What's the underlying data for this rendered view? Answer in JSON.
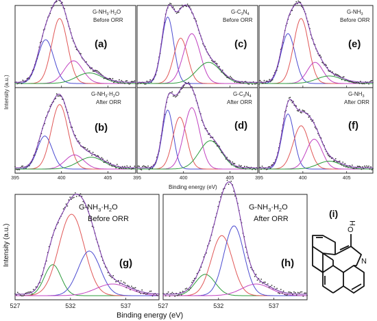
{
  "figure": {
    "top_xlabel": "Binding energy (eV)",
    "top_ylabel": "Intensity (a.u.)",
    "bottom_xlabel": "Binding energy (eV)",
    "bottom_ylabel": "Intensity (a.u.)",
    "structure_label": "(i)",
    "structure_atoms": [
      "O",
      "H",
      "N"
    ]
  },
  "chart_data": [
    {
      "type": "line",
      "panel": "(a)",
      "sample": "G-NH3·H2O",
      "state": "Before ORR",
      "xlim": [
        395,
        408
      ],
      "xticks": [
        395,
        400,
        405
      ],
      "series": [
        {
          "center": 398.3,
          "width": 0.85,
          "height": 0.58,
          "color": "#4a4ad0"
        },
        {
          "center": 399.8,
          "width": 0.85,
          "height": 0.86,
          "color": "#e05555"
        },
        {
          "center": 401.3,
          "width": 1.0,
          "height": 0.3,
          "color": "#c040c0"
        },
        {
          "center": 403.0,
          "width": 1.4,
          "height": 0.14,
          "color": "#2a9a3a"
        }
      ]
    },
    {
      "type": "line",
      "panel": "(b)",
      "sample": "G-NH3·H2O",
      "state": "After ORR",
      "xlim": [
        395,
        408
      ],
      "xticks": [
        395,
        400,
        405
      ],
      "series": [
        {
          "center": 398.2,
          "width": 0.8,
          "height": 0.42,
          "color": "#4a4ad0"
        },
        {
          "center": 399.8,
          "width": 0.9,
          "height": 0.82,
          "color": "#e05555"
        },
        {
          "center": 401.4,
          "width": 1.0,
          "height": 0.18,
          "color": "#c040c0"
        },
        {
          "center": 403.2,
          "width": 1.4,
          "height": 0.15,
          "color": "#2a9a3a"
        }
      ]
    },
    {
      "type": "line",
      "panel": "(c)",
      "sample": "G-C3N4",
      "state": "Before ORR",
      "xlim": [
        395,
        408
      ],
      "xticks": [
        395,
        400,
        405
      ],
      "series": [
        {
          "center": 398.3,
          "width": 0.65,
          "height": 0.88,
          "color": "#4a4ad0"
        },
        {
          "center": 399.7,
          "width": 0.75,
          "height": 0.6,
          "color": "#e05555"
        },
        {
          "center": 400.9,
          "width": 0.9,
          "height": 0.66,
          "color": "#c040c0"
        },
        {
          "center": 402.7,
          "width": 1.3,
          "height": 0.28,
          "color": "#2a9a3a"
        }
      ]
    },
    {
      "type": "line",
      "panel": "(d)",
      "sample": "G-C3N4",
      "state": "After ORR",
      "xlim": [
        395,
        408
      ],
      "xticks": [
        395,
        400,
        405
      ],
      "series": [
        {
          "center": 398.3,
          "width": 0.6,
          "height": 0.75,
          "color": "#4a4ad0"
        },
        {
          "center": 399.6,
          "width": 0.75,
          "height": 0.66,
          "color": "#e05555"
        },
        {
          "center": 400.9,
          "width": 0.85,
          "height": 0.78,
          "color": "#c040c0"
        },
        {
          "center": 402.9,
          "width": 1.2,
          "height": 0.36,
          "color": "#2a9a3a"
        }
      ]
    },
    {
      "type": "line",
      "panel": "(e)",
      "sample": "G-NH3",
      "state": "Before ORR",
      "xlim": [
        395,
        408
      ],
      "xticks": [
        395,
        400,
        405
      ],
      "series": [
        {
          "center": 398.3,
          "width": 0.8,
          "height": 0.66,
          "color": "#4a4ad0"
        },
        {
          "center": 399.8,
          "width": 0.85,
          "height": 0.86,
          "color": "#e05555"
        },
        {
          "center": 401.4,
          "width": 0.9,
          "height": 0.28,
          "color": "#c040c0"
        },
        {
          "center": 403.0,
          "width": 1.4,
          "height": 0.1,
          "color": "#2a9a3a"
        }
      ]
    },
    {
      "type": "line",
      "panel": "(f)",
      "sample": "G-NH3",
      "state": "After ORR",
      "xlim": [
        395,
        408
      ],
      "xticks": [
        395,
        400,
        405
      ],
      "series": [
        {
          "center": 398.3,
          "width": 0.7,
          "height": 0.7,
          "color": "#4a4ad0"
        },
        {
          "center": 399.8,
          "width": 0.9,
          "height": 0.55,
          "color": "#e05555"
        },
        {
          "center": 401.3,
          "width": 0.9,
          "height": 0.38,
          "color": "#c040c0"
        },
        {
          "center": 403.0,
          "width": 1.3,
          "height": 0.1,
          "color": "#2a9a3a"
        }
      ]
    },
    {
      "type": "line",
      "panel": "(g)",
      "sample": "G-NH3·H2O",
      "state": "Before ORR",
      "xlim": [
        527,
        540
      ],
      "xticks": [
        527,
        532,
        537
      ],
      "series": [
        {
          "center": 530.4,
          "width": 0.75,
          "height": 0.32,
          "color": "#2a9a3a"
        },
        {
          "center": 532.1,
          "width": 1.15,
          "height": 0.84,
          "color": "#e05555"
        },
        {
          "center": 533.7,
          "width": 1.0,
          "height": 0.46,
          "color": "#4a4ad0"
        },
        {
          "center": 535.8,
          "width": 1.5,
          "height": 0.12,
          "color": "#c040c0"
        }
      ]
    },
    {
      "type": "line",
      "panel": "(h)",
      "sample": "G-NH3·H2O",
      "state": "After ORR",
      "xlim": [
        527,
        540
      ],
      "xticks": [
        527,
        532,
        537
      ],
      "series": [
        {
          "center": 530.8,
          "width": 0.9,
          "height": 0.22,
          "color": "#2a9a3a"
        },
        {
          "center": 532.3,
          "width": 0.95,
          "height": 0.62,
          "color": "#e05555"
        },
        {
          "center": 533.4,
          "width": 0.9,
          "height": 0.72,
          "color": "#4a4ad0"
        },
        {
          "center": 535.4,
          "width": 1.3,
          "height": 0.12,
          "color": "#c040c0"
        }
      ]
    }
  ]
}
